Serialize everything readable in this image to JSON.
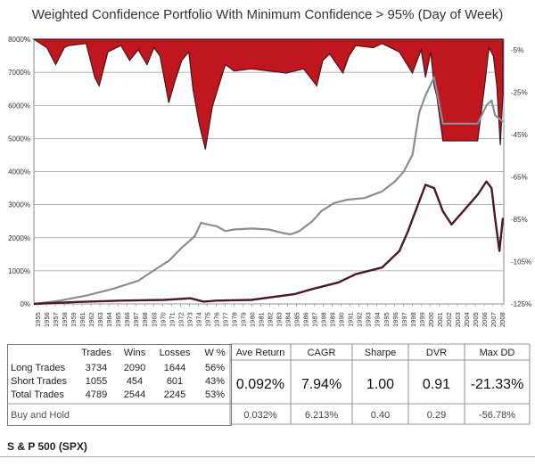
{
  "title": "Weighted Confidence Portfolio With Minimum Confidence > 95%   (Day of Week)",
  "chart_data": {
    "type": "line",
    "left_axis": {
      "ticks": [
        "0%",
        "1000%",
        "2000%",
        "3000%",
        "4000%",
        "5000%",
        "6000%",
        "7000%",
        "8000%"
      ],
      "values": [
        0,
        1000,
        2000,
        3000,
        4000,
        5000,
        6000,
        7000,
        8000
      ],
      "ylim": [
        0,
        8000
      ]
    },
    "right_axis": {
      "ticks": [
        "-5%",
        "-25%",
        "-45%",
        "-65%",
        "-85%",
        "-105%",
        "-125%"
      ],
      "values": [
        -5,
        -25,
        -45,
        -65,
        -85,
        -105,
        -125
      ],
      "ylim": [
        -125,
        0
      ]
    },
    "x_ticks": [
      "1955",
      "1956",
      "1957",
      "1958",
      "1959",
      "1961",
      "1962",
      "1963",
      "1964",
      "1965",
      "1966",
      "1967",
      "1968",
      "1969",
      "1970",
      "1971",
      "1972",
      "1973",
      "1974",
      "1975",
      "1976",
      "1977",
      "1978",
      "1979",
      "1980",
      "1981",
      "1982",
      "1983",
      "1984",
      "1985",
      "1986",
      "1987",
      "1988",
      "1989",
      "1990",
      "1991",
      "1992",
      "1993",
      "1994",
      "1995",
      "1996",
      "1997",
      "1998",
      "1999",
      "2000",
      "2001",
      "2002",
      "2003",
      "2004",
      "2005",
      "2006",
      "2007",
      "2008"
    ],
    "xlim": [
      1955,
      2009
    ],
    "colors": {
      "strategy": "#8a8d95",
      "buyhold": "#4a1a22",
      "drawdown_fill": "#c0161d",
      "drawdown_dark": "#3c1c22",
      "grid": "#9a9a9a"
    },
    "series": [
      {
        "role": "strategy",
        "x": [
          1955,
          1958,
          1961,
          1964,
          1967,
          1969,
          1970.5,
          1972,
          1973.5,
          1974.2,
          1975,
          1976,
          1977,
          1978,
          1980,
          1982,
          1983.5,
          1984.5,
          1985.5,
          1987,
          1988,
          1989.5,
          1991,
          1993,
          1995,
          1996.5,
          1997.5,
          1998.5,
          1999.3,
          2000,
          2001,
          2002,
          2003,
          2004,
          2005,
          2006,
          2007,
          2007.6,
          2008,
          2008.5,
          2008.9
        ],
        "values": [
          0,
          100,
          250,
          450,
          700,
          1050,
          1300,
          1700,
          2050,
          2450,
          2400,
          2350,
          2200,
          2250,
          2280,
          2250,
          2150,
          2100,
          2200,
          2500,
          2800,
          3050,
          3150,
          3200,
          3400,
          3700,
          4000,
          4500,
          5800,
          6300,
          6850,
          5450,
          5450,
          5450,
          5450,
          5450,
          6000,
          6150,
          5700,
          5600,
          5500
        ]
      },
      {
        "role": "buyhold",
        "x": [
          1955,
          1960,
          1965,
          1970,
          1973,
          1974.5,
          1976,
          1980,
          1985,
          1987,
          1990,
          1992,
          1995,
          1997,
          1998,
          1999,
          2000,
          2001,
          2002,
          2003,
          2004,
          2005,
          2006,
          2007,
          2007.6,
          2008,
          2008.5,
          2008.9
        ],
        "values": [
          0,
          60,
          100,
          120,
          170,
          70,
          100,
          120,
          300,
          450,
          650,
          900,
          1100,
          1600,
          2200,
          2900,
          3600,
          3500,
          2800,
          2400,
          2700,
          3000,
          3300,
          3700,
          3500,
          2600,
          1600,
          2600
        ]
      },
      {
        "role": "drawdown",
        "x": [
          1955,
          1956.5,
          1957.5,
          1958.5,
          1959,
          1961,
          1962,
          1962.5,
          1963.5,
          1965,
          1966,
          1967,
          1968,
          1968.8,
          1969.5,
          1970.5,
          1971.2,
          1972,
          1972.8,
          1973.3,
          1974,
          1974.7,
          1975.5,
          1977,
          1978,
          1980,
          1982,
          1984,
          1986,
          1987.5,
          1988.2,
          1989,
          1990.5,
          1991.2,
          1992,
          1994,
          1995,
          1997,
          1998.5,
          1999.5,
          2000,
          2000.6,
          2001,
          2001.3,
          2002,
          2003,
          2004,
          2005,
          2006,
          2006.8,
          2007.3,
          2007.8,
          2008.2,
          2008.6,
          2008.9
        ],
        "values": [
          0,
          -4,
          -12,
          -4,
          -3,
          -2,
          -18,
          -22,
          -6,
          -3,
          -10,
          -5,
          -12,
          -4,
          -8,
          -30,
          -20,
          -10,
          -6,
          -24,
          -40,
          -52,
          -32,
          -12,
          -15,
          -14,
          -15,
          -16,
          -14,
          -22,
          -10,
          -7,
          -16,
          -8,
          -3,
          -4,
          -2,
          -6,
          -16,
          -5,
          -18,
          -6,
          -22,
          -27,
          -48,
          -48,
          -48,
          -48,
          -48,
          -22,
          -4,
          -8,
          -22,
          -50,
          -26
        ]
      }
    ]
  },
  "stats_table": {
    "headers": [
      "Trades",
      "Wins",
      "Losses",
      "W %"
    ],
    "rows": [
      {
        "label": "Long Trades",
        "trades": "3734",
        "wins": "2090",
        "losses": "1644",
        "wpct": "56%"
      },
      {
        "label": "Short Trades",
        "trades": "1055",
        "wins": "454",
        "losses": "601",
        "wpct": "43%"
      },
      {
        "label": "Total Trades",
        "trades": "4789",
        "wins": "2544",
        "losses": "2245",
        "wpct": "53%"
      }
    ],
    "buy_hold_label": "Buy and Hold",
    "metric_headers": [
      "Ave Return",
      "CAGR",
      "Sharpe",
      "DVR",
      "Max DD"
    ],
    "strategy_metrics": [
      "0.092%",
      "7.94%",
      "1.00",
      "0.91",
      "-21.33%"
    ],
    "buyhold_metrics": [
      "0.032%",
      "6.213%",
      "0.40",
      "0.29",
      "-56.78%"
    ]
  },
  "footer": "S & P 500 (SPX)"
}
